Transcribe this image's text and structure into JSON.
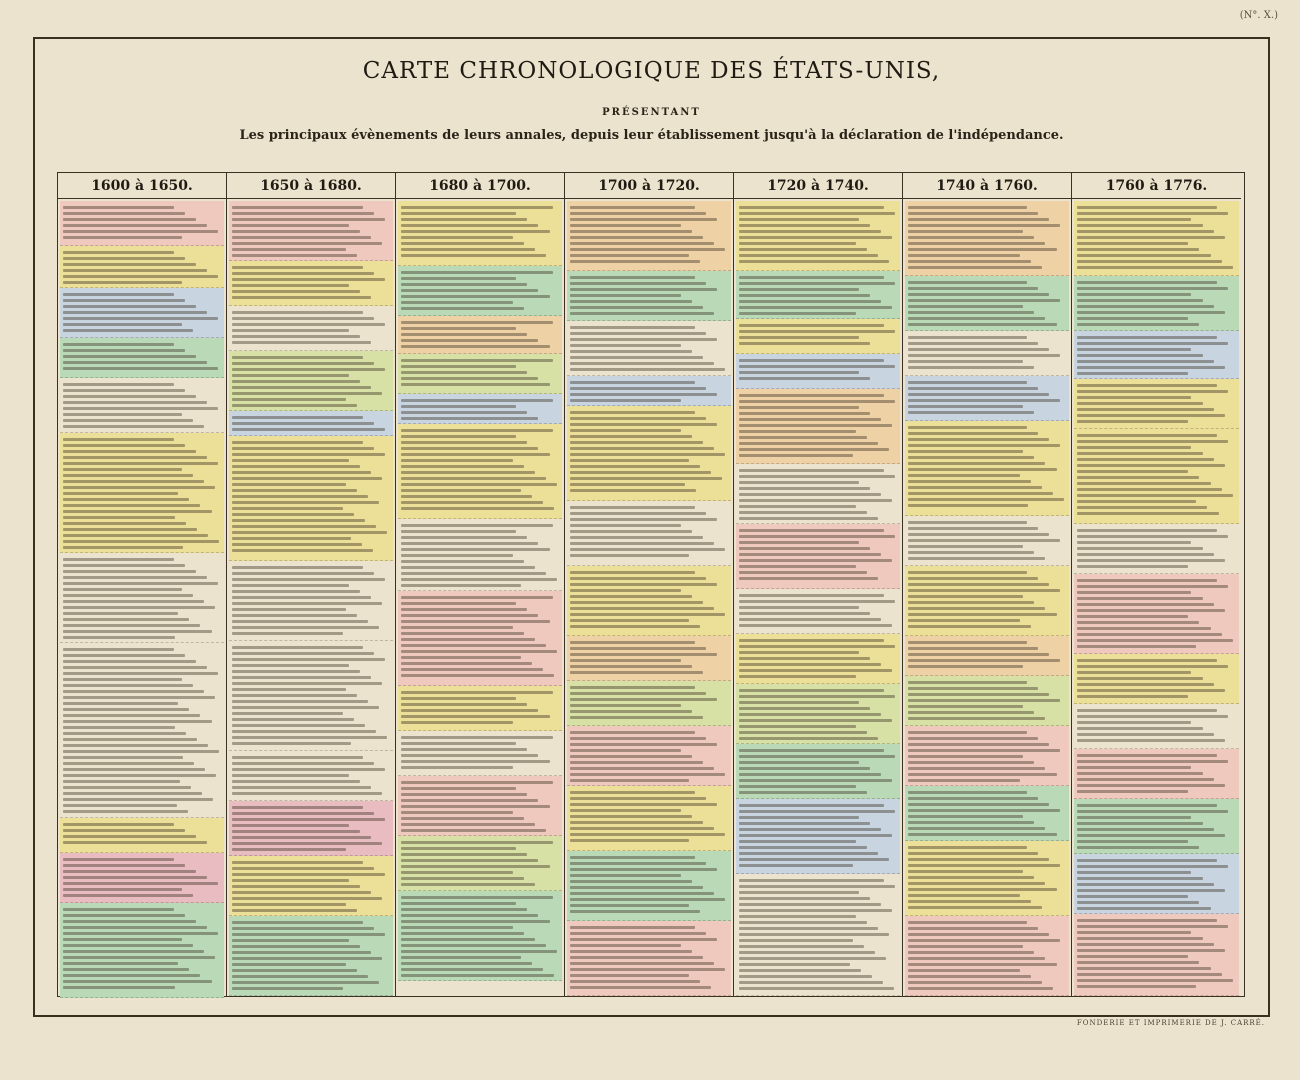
{
  "corner_label": "(N°. X.)",
  "title": "CARTE CHRONOLOGIQUE DES ÉTATS-UNIS,",
  "presentant": "PRÉSENTANT",
  "subtitle": "Les principaux évènements de leurs annales, depuis leur établissement jusqu'à la déclaration de l'indépendance.",
  "columns": [
    "1600 à 1650.",
    "1650 à 1680.",
    "1680 à 1700.",
    "1700 à 1720.",
    "1720 à 1740.",
    "1740 à 1760.",
    "1760 à 1776."
  ],
  "footer": "FONDERIE ET IMPRIMERIE DE J. CARRÉ."
}
